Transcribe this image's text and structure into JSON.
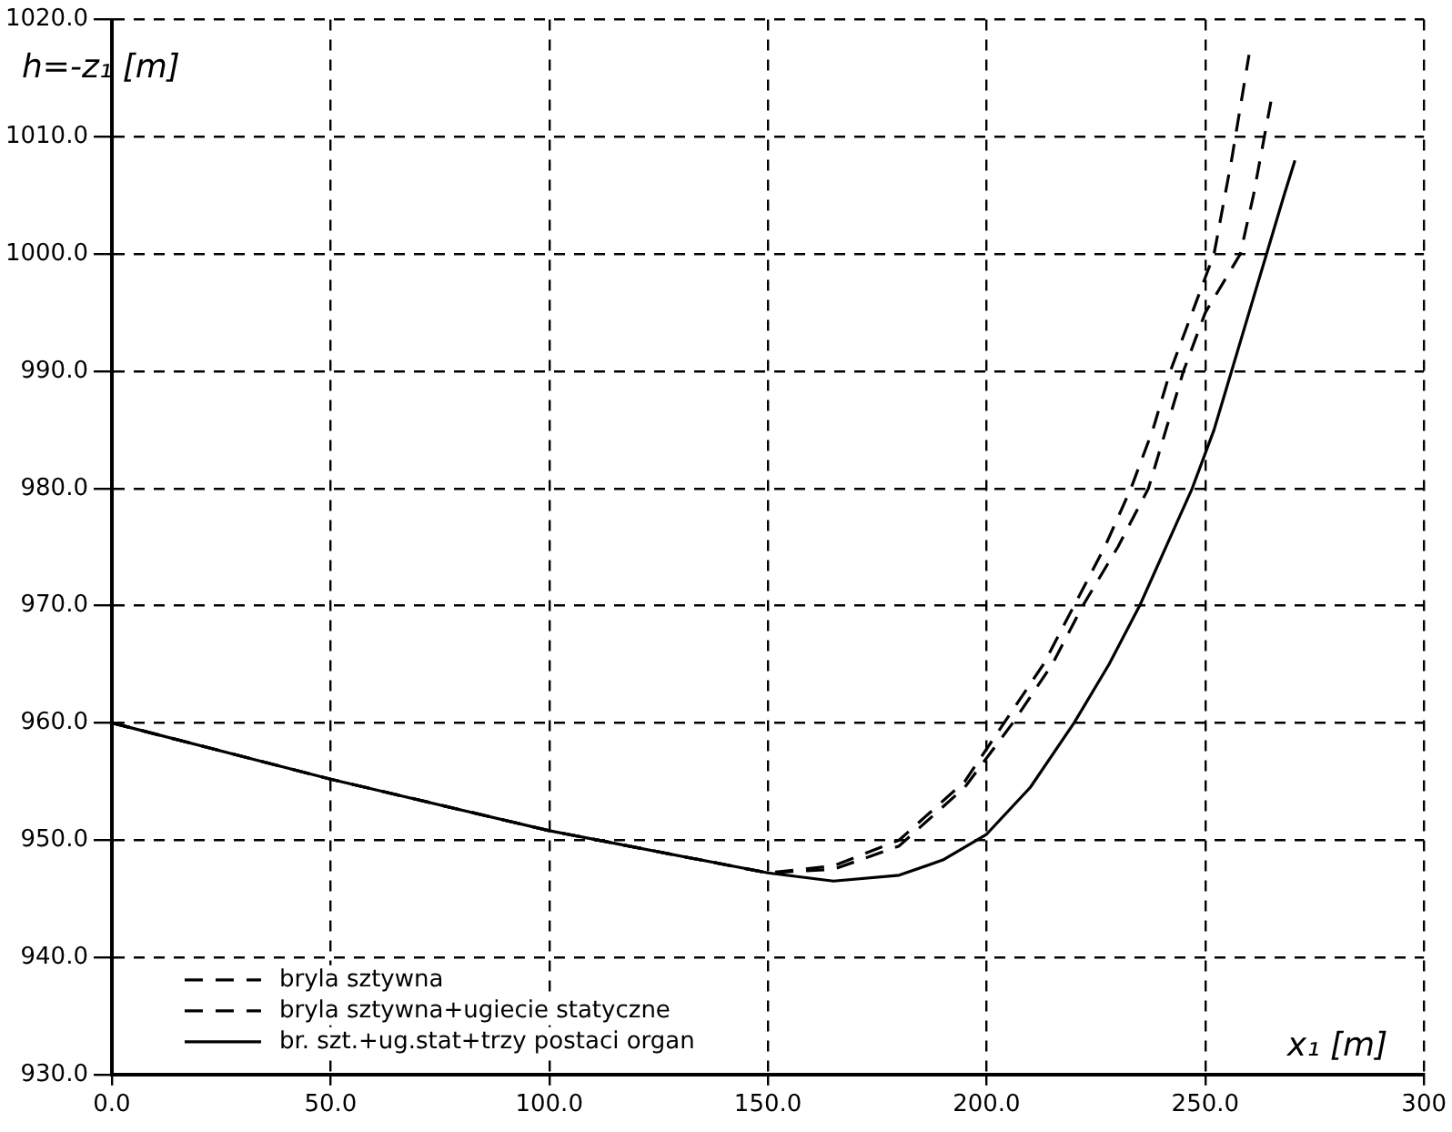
{
  "chart_data": {
    "type": "line",
    "xlabel": "x₁ [m]",
    "ylabel": "h=-z₁ [m]",
    "xlim": [
      0,
      300
    ],
    "ylim": [
      930,
      1020
    ],
    "xticks": [
      {
        "value": 0,
        "label": "0.0"
      },
      {
        "value": 50,
        "label": "50.0"
      },
      {
        "value": 100,
        "label": "100.0"
      },
      {
        "value": 150,
        "label": "150.0"
      },
      {
        "value": 200,
        "label": "200.0"
      },
      {
        "value": 250,
        "label": "250.0"
      },
      {
        "value": 300,
        "label": "300"
      }
    ],
    "yticks": [
      {
        "value": 930,
        "label": "930.0"
      },
      {
        "value": 940,
        "label": "940.0"
      },
      {
        "value": 950,
        "label": "950.0"
      },
      {
        "value": 960,
        "label": "960.0"
      },
      {
        "value": 970,
        "label": "970.0"
      },
      {
        "value": 980,
        "label": "980.0"
      },
      {
        "value": 990,
        "label": "990.0"
      },
      {
        "value": 1000,
        "label": "1000.0"
      },
      {
        "value": 1010,
        "label": "1010.0"
      },
      {
        "value": 1020,
        "label": "1020.0"
      }
    ],
    "grid": true,
    "legend": "bottom left",
    "marker": "none",
    "series": [
      {
        "name": "bryla sztywna",
        "color": "#000000",
        "line_style": "dashed",
        "x": [
          0,
          50,
          100,
          150,
          165,
          180,
          195,
          204,
          213,
          220,
          227,
          233,
          238,
          242,
          247,
          252,
          256,
          260
        ],
        "values": [
          960,
          955.2,
          950.8,
          947.2,
          947.8,
          950,
          955,
          960,
          965,
          970,
          975,
          980,
          985,
          990,
          995,
          1000,
          1008,
          1017
        ]
      },
      {
        "name": "bryla sztywna+ugiecie statyczne",
        "color": "#000000",
        "line_style": "dashed",
        "x": [
          0,
          50,
          100,
          150,
          165,
          180,
          195,
          206,
          215,
          222,
          230,
          237,
          241,
          245,
          250,
          258,
          261,
          265
        ],
        "values": [
          960,
          955.2,
          950.8,
          947.2,
          947.5,
          949.5,
          954.5,
          960,
          965,
          970,
          975,
          980,
          985,
          990,
          995,
          1000,
          1005,
          1013
        ]
      },
      {
        "name": "br. szt.+ug.stat+trzy postaci organ",
        "color": "#000000",
        "line_style": "solid",
        "x": [
          0,
          50,
          100,
          150,
          165,
          180,
          190,
          200,
          210,
          220,
          228,
          235,
          241,
          247,
          252,
          256,
          260,
          264,
          268,
          270.5
        ],
        "values": [
          960,
          955.2,
          950.8,
          947.2,
          946.5,
          947,
          948.3,
          950.5,
          954.5,
          960,
          965,
          970,
          975,
          980,
          985,
          990,
          995,
          1000,
          1005,
          1008
        ]
      }
    ]
  }
}
